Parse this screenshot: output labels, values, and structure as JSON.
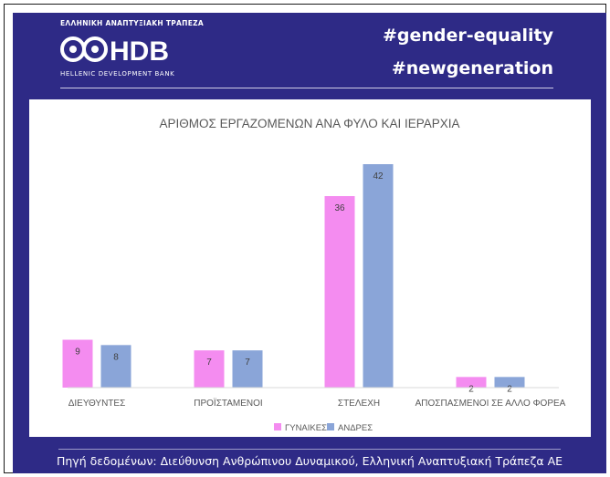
{
  "header": {
    "logo_top_text": "ΕΛΛΗΝΙΚΗ ΑΝΑΠΤΥΞΙΑΚΗ ΤΡΑΠΕΖΑ",
    "logo_mark_text": "HDB",
    "logo_bottom_text": "HELLENIC DEVELOPMENT BANK",
    "hashtag_1": "#gender-equality",
    "hashtag_2": "#newgeneration"
  },
  "colors": {
    "background": "#2e2a86",
    "women": "#f48cf0",
    "men": "#8aa5d8"
  },
  "chart_data": {
    "type": "bar",
    "title": "ΑΡΙΘΜΟΣ ΕΡΓΑΖΟΜΕΝΩΝ ΑΝΑ ΦΥΛΟ ΚΑΙ ΙΕΡΑΡΧΙΑ",
    "categories": [
      "ΔΙΕΥΘΥΝΤΕΣ",
      "ΠΡΟΪΣΤΑΜΕΝΟΙ",
      "ΣΤΕΛΕΧΗ",
      "ΑΠΟΣΠΑΣΜΕΝΟΙ ΣΕ ΑΛΛΟ ΦΟΡΕΑ"
    ],
    "series": [
      {
        "name": "ΓΥΝΑΙΚΕΣ",
        "values": [
          9,
          7,
          36,
          2
        ],
        "color": "#f48cf0"
      },
      {
        "name": "ΑΝΔΡΕΣ",
        "values": [
          8,
          7,
          42,
          2
        ],
        "color": "#8aa5d8"
      }
    ],
    "ylim": [
      0,
      42
    ],
    "grid": false,
    "legend_position": "bottom-center",
    "data_labels": true
  },
  "footer": {
    "source": "Πηγή δεδομένων: Διεύθυνση Ανθρώπινου Δυναμικού, Ελληνική Αναπτυξιακή Τράπεζα ΑΕ"
  }
}
